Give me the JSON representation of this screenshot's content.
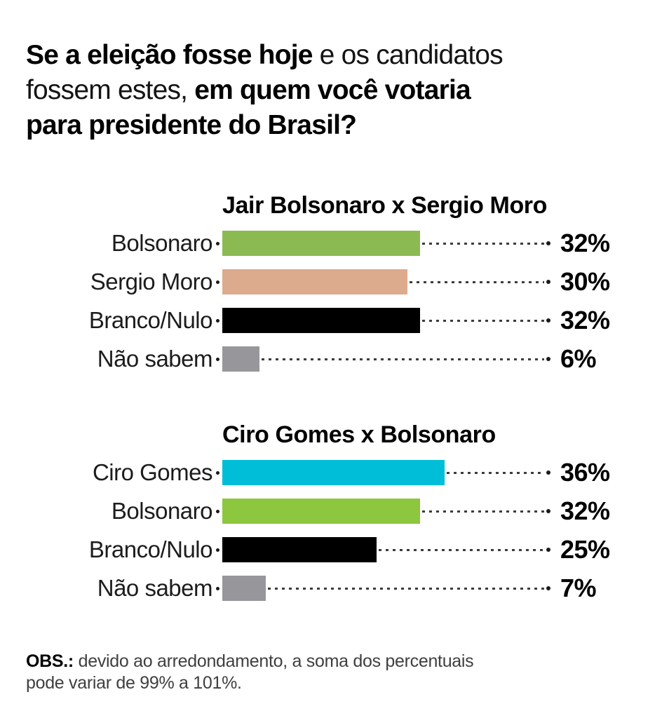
{
  "header": {
    "line1_bold": "Se a eleição fosse hoje",
    "line1_regular": " e os candidatos",
    "line2_regular": "fossem estes, ",
    "line2_bold": "em quem você votaria",
    "line3_bold": "para presidente do Brasil?"
  },
  "chart_data": [
    {
      "type": "bar",
      "orientation": "horizontal",
      "title": "Jair Bolsonaro x Sergio Moro",
      "categories": [
        "Bolsonaro",
        "Sergio Moro",
        "Branco/Nulo",
        "Não sabem"
      ],
      "values": [
        32,
        30,
        32,
        6
      ],
      "value_labels": [
        "32%",
        "30%",
        "32%",
        "6%"
      ],
      "colors": [
        "#8cba52",
        "#dcaa8c",
        "#000000",
        "#97979b"
      ],
      "xlim": [
        0,
        54
      ],
      "grid": false,
      "legend": "none",
      "leader_style": "dashed"
    },
    {
      "type": "bar",
      "orientation": "horizontal",
      "title": "Ciro Gomes x Bolsonaro",
      "categories": [
        "Ciro Gomes",
        "Bolsonaro",
        "Branco/Nulo",
        "Não sabem"
      ],
      "values": [
        36,
        32,
        25,
        7
      ],
      "value_labels": [
        "36%",
        "32%",
        "25%",
        "7%"
      ],
      "colors": [
        "#00bed8",
        "#8dc63f",
        "#000000",
        "#97979b"
      ],
      "xlim": [
        0,
        54
      ],
      "grid": false,
      "legend": "none",
      "leader_style": "dashed"
    }
  ],
  "footer": {
    "obs_label": "OBS.:",
    "line1": "devido ao arredondamento, a soma dos percentuais",
    "line2": "pode variar de 99% a 101%."
  },
  "palette": {
    "background": "#ffffff",
    "text": "#000000",
    "muted_text": "#3f3f3f",
    "leader": "#3c3c3c"
  }
}
